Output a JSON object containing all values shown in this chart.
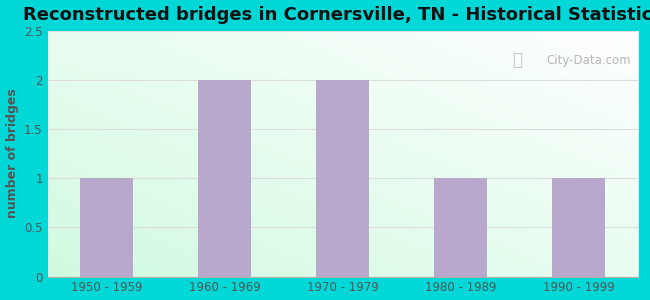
{
  "title": "Reconstructed bridges in Cornersville, TN - Historical Statistics",
  "categories": [
    "1950 - 1959",
    "1960 - 1969",
    "1970 - 1979",
    "1980 - 1989",
    "1990 - 1999"
  ],
  "values": [
    1,
    2,
    2,
    1,
    1
  ],
  "bar_color": "#b8a8cc",
  "ylabel": "number of bridges",
  "ylim": [
    0,
    2.5
  ],
  "yticks": [
    0,
    0.5,
    1,
    1.5,
    2,
    2.5
  ],
  "background_color": "#00d8d8",
  "title_fontsize": 13,
  "ylabel_fontsize": 9,
  "tick_fontsize": 8.5,
  "watermark_text": "City-Data.com",
  "grid_color": "#dddddd",
  "ylabel_color": "#555555",
  "tick_color": "#555555"
}
